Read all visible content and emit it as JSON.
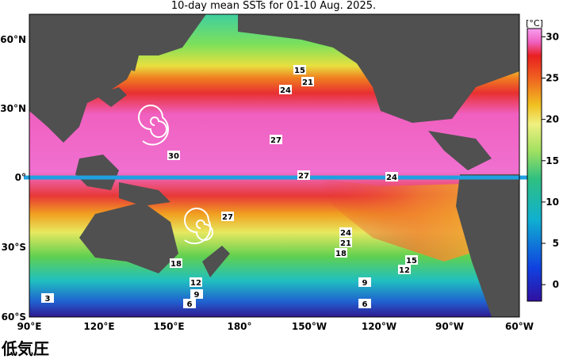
{
  "title": "10-day mean SSTs for 01-10 Aug. 2025.",
  "caption": "低気圧",
  "lat_labels": [
    "60°N",
    "30°N",
    "0°",
    "30°S",
    "60°S"
  ],
  "lon_labels": [
    "90°E",
    "120°E",
    "150°E",
    "180°",
    "150°W",
    "120°W",
    "90°W",
    "60°W"
  ],
  "colorbar": {
    "unit": "[°C]",
    "lim": [
      -2,
      31
    ],
    "ticks": [
      0,
      5,
      10,
      15,
      20,
      25,
      30
    ]
  },
  "contour_labels": [
    15,
    21,
    24,
    27,
    30,
    27,
    24,
    27,
    24,
    21,
    18,
    15,
    12,
    18,
    12,
    9,
    6,
    9,
    6,
    3
  ]
}
